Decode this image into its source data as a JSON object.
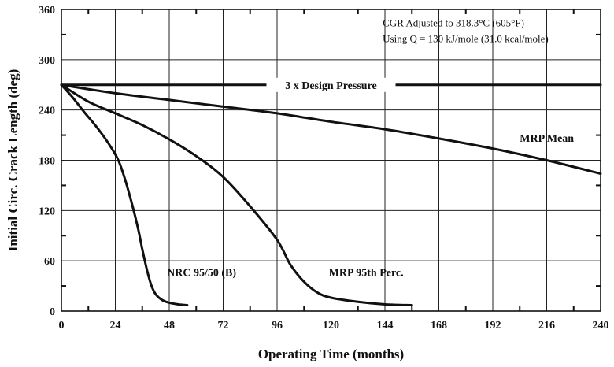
{
  "chart_data": {
    "type": "line",
    "title": "",
    "xlabel": "Operating Time (months)",
    "ylabel": "Initial Circ. Crack Length (deg)",
    "xlim": [
      0,
      240
    ],
    "ylim": [
      0,
      360
    ],
    "xticks": [
      0,
      24,
      48,
      72,
      96,
      120,
      144,
      168,
      192,
      216,
      240
    ],
    "yticks": [
      0,
      60,
      120,
      180,
      240,
      300,
      360
    ],
    "grid": true,
    "annotations": [
      "CGR Adjusted to 318.3°C (605°F)",
      "Using Q = 130 kJ/mole (31.0 kcal/mole)"
    ],
    "reference_line": {
      "label": "3 x Design Pressure",
      "y": 270
    },
    "series": [
      {
        "name": "NRC 95/50 (B)",
        "points": [
          [
            0,
            270
          ],
          [
            5,
            255
          ],
          [
            10,
            238
          ],
          [
            15,
            222
          ],
          [
            20,
            204
          ],
          [
            25,
            182
          ],
          [
            28,
            160
          ],
          [
            31,
            132
          ],
          [
            34,
            100
          ],
          [
            36,
            74
          ],
          [
            38,
            50
          ],
          [
            40,
            31
          ],
          [
            42,
            20
          ],
          [
            45,
            13
          ],
          [
            48,
            10
          ],
          [
            52,
            8
          ],
          [
            56,
            7
          ]
        ]
      },
      {
        "name": "MRP 95th Perc.",
        "points": [
          [
            0,
            270
          ],
          [
            12,
            250
          ],
          [
            24,
            236
          ],
          [
            36,
            222
          ],
          [
            48,
            205
          ],
          [
            60,
            185
          ],
          [
            72,
            160
          ],
          [
            84,
            125
          ],
          [
            96,
            85
          ],
          [
            102,
            55
          ],
          [
            108,
            35
          ],
          [
            114,
            22
          ],
          [
            120,
            16
          ],
          [
            132,
            11
          ],
          [
            144,
            8
          ],
          [
            156,
            7
          ]
        ]
      },
      {
        "name": "MRP Mean",
        "points": [
          [
            0,
            270
          ],
          [
            24,
            260
          ],
          [
            48,
            252
          ],
          [
            72,
            244
          ],
          [
            96,
            236
          ],
          [
            120,
            226
          ],
          [
            144,
            217
          ],
          [
            168,
            206
          ],
          [
            192,
            194
          ],
          [
            216,
            180
          ],
          [
            240,
            164
          ]
        ]
      }
    ]
  }
}
